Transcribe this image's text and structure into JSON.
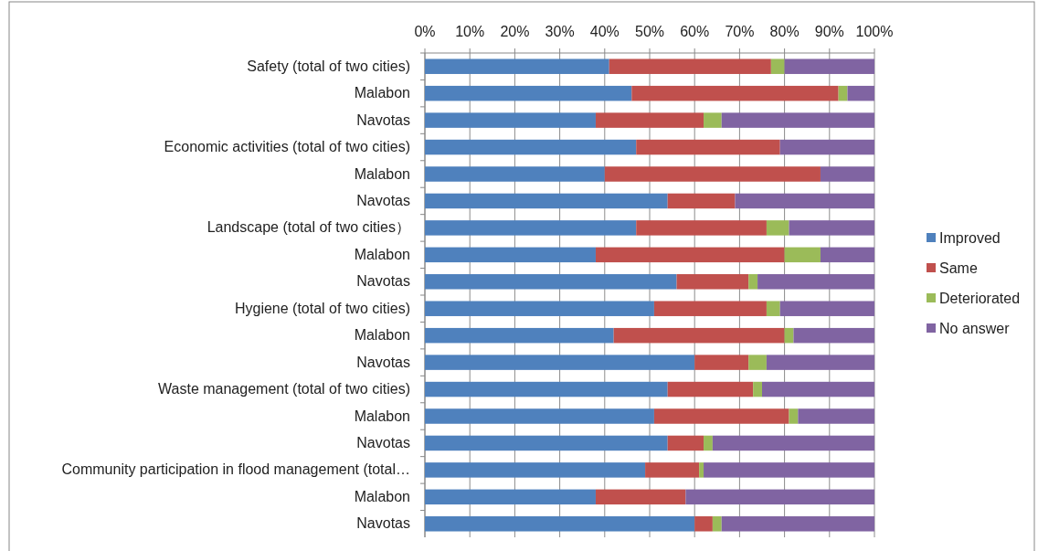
{
  "chart_data": {
    "type": "bar",
    "orientation": "horizontal",
    "stacked": true,
    "categories": [
      "Safety (total of two cities)",
      "Malabon",
      "Navotas",
      "Economic activities (total of two cities)",
      "Malabon",
      "Navotas",
      "Landscape (total of two cities）",
      "Malabon",
      "Navotas",
      "Hygiene (total of two cities)",
      "Malabon",
      "Navotas",
      "Waste management (total of two cities)",
      "Malabon",
      "Navotas",
      "Community participation in flood management (total…",
      "Malabon",
      "Navotas"
    ],
    "series": [
      {
        "name": "Improved",
        "color": "#4f81bd",
        "values": [
          41,
          46,
          38,
          47,
          40,
          54,
          47,
          38,
          56,
          51,
          42,
          60,
          54,
          51,
          54,
          49,
          38,
          60
        ]
      },
      {
        "name": "Same",
        "color": "#c0504d",
        "values": [
          36,
          46,
          24,
          32,
          48,
          15,
          29,
          42,
          16,
          25,
          38,
          12,
          19,
          30,
          8,
          12,
          20,
          4
        ]
      },
      {
        "name": "Deteriorated",
        "color": "#9bbb59",
        "values": [
          3,
          2,
          4,
          0,
          0,
          0,
          5,
          8,
          2,
          3,
          2,
          4,
          2,
          2,
          2,
          1,
          0,
          2
        ]
      },
      {
        "name": "No answer",
        "color": "#8064a2",
        "values": [
          20,
          6,
          34,
          21,
          12,
          31,
          19,
          12,
          26,
          21,
          18,
          24,
          25,
          17,
          36,
          38,
          42,
          34
        ]
      }
    ],
    "xlim": [
      0,
      100
    ],
    "xticks": [
      {
        "value": 0,
        "label": "0%"
      },
      {
        "value": 10,
        "label": "10%"
      },
      {
        "value": 20,
        "label": "20%"
      },
      {
        "value": 30,
        "label": "30%"
      },
      {
        "value": 40,
        "label": "40%"
      },
      {
        "value": 50,
        "label": "50%"
      },
      {
        "value": 60,
        "label": "60%"
      },
      {
        "value": 70,
        "label": "70%"
      },
      {
        "value": 80,
        "label": "80%"
      },
      {
        "value": 90,
        "label": "90%"
      },
      {
        "value": 100,
        "label": "100%"
      }
    ],
    "grid": "x",
    "legend": "right"
  }
}
